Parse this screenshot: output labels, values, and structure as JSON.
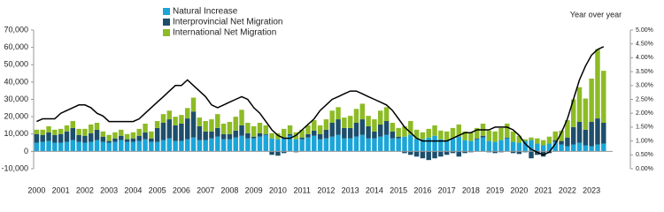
{
  "chart_data": {
    "type": "bar",
    "categories": [
      "2000",
      null,
      null,
      null,
      "2001",
      null,
      null,
      null,
      "2002",
      null,
      null,
      null,
      "2003",
      null,
      null,
      null,
      "2004",
      null,
      null,
      null,
      "2005",
      null,
      null,
      null,
      "2006",
      null,
      null,
      null,
      "2007",
      null,
      null,
      null,
      "2008",
      null,
      null,
      null,
      "2009",
      null,
      null,
      null,
      "2010",
      null,
      null,
      null,
      "2011",
      null,
      null,
      null,
      "2012",
      null,
      null,
      null,
      "2013",
      null,
      null,
      null,
      "2014",
      null,
      null,
      null,
      "2015",
      null,
      null,
      null,
      "2016",
      null,
      null,
      null,
      "2017",
      null,
      null,
      null,
      "2018",
      null,
      null,
      null,
      "2019",
      null,
      null,
      null,
      "2020",
      null,
      null,
      null,
      "2021",
      null,
      null,
      null,
      "2022",
      null,
      null,
      null,
      "2023",
      null,
      null
    ],
    "series": [
      {
        "name": "Natural Increase",
        "color": "#1ba5d8",
        "values": [
          5000,
          5500,
          6000,
          5000,
          5000,
          5500,
          6500,
          5500,
          5000,
          5500,
          6500,
          5500,
          5000,
          5500,
          6500,
          5500,
          5500,
          6000,
          7000,
          5500,
          5500,
          6500,
          7500,
          6000,
          6000,
          7000,
          8000,
          6500,
          6500,
          7500,
          8500,
          7000,
          7000,
          8000,
          9000,
          7500,
          7500,
          8500,
          9500,
          7500,
          7000,
          8000,
          9000,
          7000,
          7000,
          8000,
          9000,
          7000,
          7500,
          8500,
          9500,
          7500,
          7500,
          8500,
          9500,
          7500,
          7500,
          8500,
          9500,
          7500,
          7500,
          8500,
          9500,
          7500,
          7000,
          8000,
          9000,
          7000,
          6500,
          7500,
          8500,
          6500,
          6000,
          7000,
          8000,
          6000,
          5500,
          6500,
          7500,
          5500,
          5000,
          6000,
          6500,
          4500,
          3500,
          4500,
          5500,
          4000,
          3000,
          4000,
          5000,
          3500,
          3000,
          4000,
          4500
        ]
      },
      {
        "name": "Interprovincial Net Migration",
        "color": "#1d4e6b",
        "values": [
          5000,
          4000,
          5000,
          4500,
          5000,
          6000,
          7000,
          4000,
          4000,
          5000,
          6000,
          3000,
          1000,
          2000,
          2500,
          1500,
          2000,
          3000,
          4000,
          2000,
          8000,
          10000,
          11000,
          9000,
          10000,
          12000,
          15000,
          8000,
          5000,
          4000,
          5000,
          3000,
          3000,
          4000,
          6000,
          3000,
          1000,
          2000,
          500,
          -2000,
          -2500,
          -1000,
          1000,
          -500,
          1000,
          2000,
          3000,
          3000,
          5000,
          8000,
          9000,
          6000,
          6000,
          8000,
          9000,
          7000,
          4000,
          7000,
          8000,
          4000,
          1000,
          -1000,
          -2000,
          -3000,
          -4000,
          -5000,
          -4000,
          -3000,
          -2000,
          -1000,
          -3000,
          -1000,
          -500,
          500,
          1000,
          -500,
          -1000,
          -500,
          500,
          -1000,
          -1500,
          -500,
          -4000,
          -2000,
          -3000,
          -1000,
          1000,
          2000,
          5000,
          10000,
          12000,
          9000,
          14000,
          15000,
          12000
        ]
      },
      {
        "name": "International Net Migration",
        "color": "#8dbb25",
        "values": [
          2500,
          3000,
          3500,
          3000,
          3000,
          3500,
          4000,
          3500,
          4000,
          5000,
          4000,
          3000,
          3500,
          3500,
          3500,
          3000,
          3500,
          4000,
          5000,
          4000,
          4000,
          5000,
          5000,
          5000,
          5000,
          6000,
          8000,
          5000,
          6000,
          7000,
          8000,
          6000,
          7000,
          8000,
          9000,
          6000,
          6000,
          6000,
          5000,
          3000,
          3500,
          5000,
          5000,
          4000,
          4500,
          5000,
          6000,
          5000,
          6000,
          7000,
          7000,
          6000,
          7000,
          8000,
          9000,
          6000,
          7000,
          8000,
          8000,
          5000,
          5000,
          6000,
          8000,
          5000,
          4000,
          5000,
          6000,
          5000,
          5000,
          6000,
          7000,
          5000,
          5000,
          6000,
          7000,
          6000,
          6000,
          7000,
          8000,
          6000,
          4000,
          1000,
          1500,
          3000,
          3000,
          4000,
          5000,
          6000,
          10000,
          16000,
          20000,
          18000,
          25000,
          40000,
          30000
        ]
      },
      {
        "type": "line",
        "axis": "y2",
        "color": "#000000",
        "values": [
          1.7,
          1.8,
          1.8,
          1.8,
          2.0,
          2.1,
          2.2,
          2.3,
          2.3,
          2.2,
          2.0,
          1.9,
          1.7,
          1.7,
          1.7,
          1.7,
          1.7,
          1.8,
          2.0,
          2.2,
          2.4,
          2.6,
          2.8,
          3.0,
          3.0,
          3.2,
          3.0,
          2.8,
          2.6,
          2.3,
          2.2,
          2.3,
          2.4,
          2.5,
          2.6,
          2.5,
          2.2,
          2.0,
          1.7,
          1.4,
          1.2,
          1.1,
          1.1,
          1.2,
          1.4,
          1.6,
          1.8,
          2.1,
          2.3,
          2.5,
          2.6,
          2.7,
          2.8,
          2.8,
          2.7,
          2.6,
          2.5,
          2.4,
          2.3,
          2.1,
          1.8,
          1.5,
          1.3,
          1.1,
          1.0,
          1.0,
          1.0,
          1.0,
          1.0,
          1.1,
          1.2,
          1.3,
          1.3,
          1.4,
          1.4,
          1.4,
          1.5,
          1.5,
          1.5,
          1.4,
          1.2,
          0.9,
          0.7,
          0.6,
          0.5,
          0.6,
          0.9,
          1.3,
          1.8,
          2.5,
          3.2,
          3.7,
          4.1,
          4.3,
          4.4
        ]
      }
    ],
    "ylim": [
      -10000,
      70000
    ],
    "yticks": [
      {
        "value": -10000,
        "label": "-10,000"
      },
      0,
      {
        "value": 10000,
        "label": "10,000"
      },
      {
        "value": 20000,
        "label": "20,000"
      },
      {
        "value": 30000,
        "label": "30,000"
      },
      {
        "value": 40000,
        "label": "40,000"
      },
      {
        "value": 50000,
        "label": "50,000"
      },
      {
        "value": 60000,
        "label": "60,000"
      },
      {
        "value": 70000,
        "label": "70,000"
      }
    ],
    "y2_title": "Year over year",
    "y2lim": [
      0,
      5
    ],
    "y2ticks": [
      {
        "value": 0,
        "label": "0.00%"
      },
      {
        "value": 0.5,
        "label": "0.50%"
      },
      {
        "value": 1,
        "label": "1.00%"
      },
      {
        "value": 1.5,
        "label": "1.50%"
      },
      {
        "value": 2,
        "label": "2.00%"
      },
      {
        "value": 2.5,
        "label": "2.50%"
      },
      {
        "value": 3,
        "label": "3.00%"
      },
      {
        "value": 3.5,
        "label": "3.50%"
      },
      {
        "value": 4,
        "label": "4.00%"
      },
      {
        "value": 4.5,
        "label": "4.50%"
      },
      {
        "value": 5,
        "label": "5.00%"
      }
    ],
    "grid": false
  }
}
